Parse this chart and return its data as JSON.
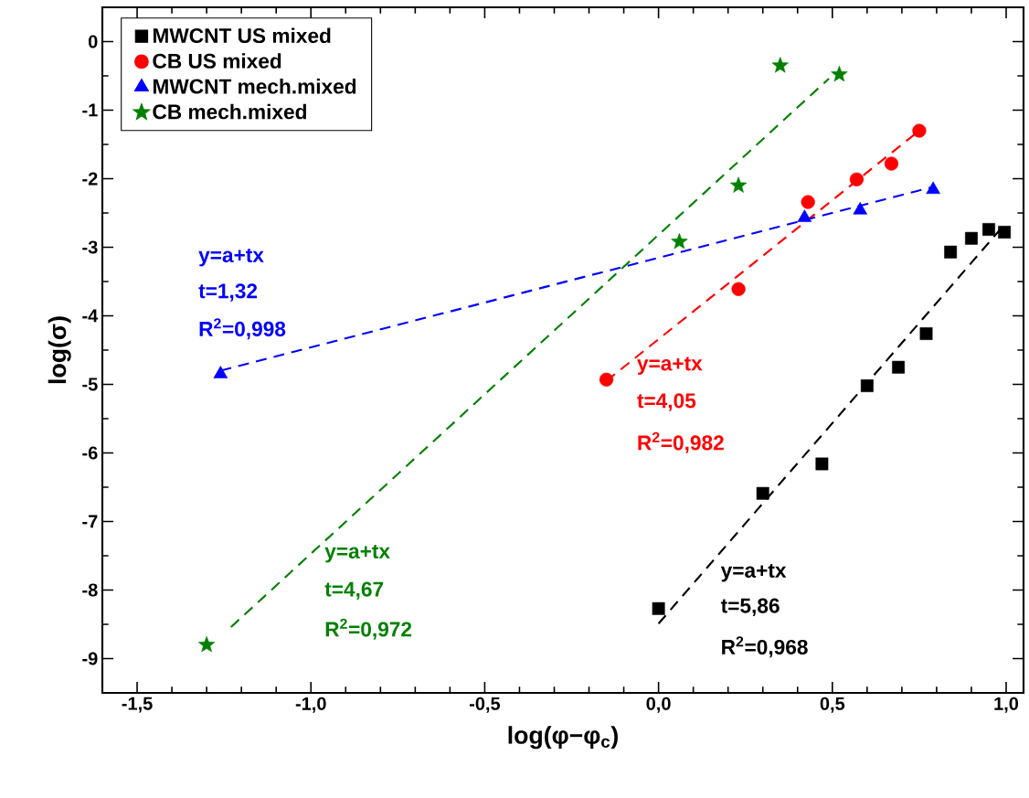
{
  "chart_data": {
    "type": "scatter",
    "xlabel": "log(φ−φ$_{c}$)",
    "ylabel": "log(σ)",
    "xlim": [
      -1.6,
      1.05
    ],
    "ylim": [
      -9.5,
      0.5
    ],
    "xticks": [
      {
        "value": -1.5,
        "label": "-1,5"
      },
      {
        "value": -1.0,
        "label": "-1,0"
      },
      {
        "value": -0.5,
        "label": "-0,5"
      },
      {
        "value": 0.0,
        "label": "0,0"
      },
      {
        "value": 0.5,
        "label": "0,5"
      },
      {
        "value": 1.0,
        "label": "1,0"
      }
    ],
    "yticks": [
      0,
      -1,
      -2,
      -3,
      -4,
      -5,
      -6,
      -7,
      -8,
      -9
    ],
    "legend": "top left",
    "series": [
      {
        "name": "MWCNT US mixed",
        "marker": "square",
        "color": "#000000",
        "x": [
          0.0,
          0.3,
          0.47,
          0.6,
          0.69,
          0.77,
          0.84,
          0.9,
          0.95,
          0.995
        ],
        "values": [
          -8.27,
          -6.59,
          -6.16,
          -5.02,
          -4.75,
          -4.26,
          -3.07,
          -2.87,
          -2.74,
          -2.78
        ]
      },
      {
        "name": "CB US mixed",
        "marker": "circle",
        "color": "#ff0000",
        "x": [
          -0.15,
          0.23,
          0.43,
          0.57,
          0.67,
          0.75
        ],
        "values": [
          -4.93,
          -3.61,
          -2.34,
          -2.01,
          -1.78,
          -1.3
        ]
      },
      {
        "name": "MWCNT mech.mixed",
        "marker": "triangle",
        "color": "#0000ff",
        "x": [
          -1.26,
          0.42,
          0.58,
          0.79
        ],
        "values": [
          -4.85,
          -2.57,
          -2.46,
          -2.16
        ]
      },
      {
        "name": "CB mech.mixed",
        "marker": "star",
        "color": "#008000",
        "x": [
          -1.3,
          0.06,
          0.23,
          0.35,
          0.52
        ],
        "values": [
          -8.8,
          -2.92,
          -2.1,
          -0.35,
          -0.48
        ]
      },
      {
        "type": "line",
        "line_style": "dashed",
        "color": "#000000",
        "x": [
          0.0,
          0.995
        ],
        "values": [
          -8.49,
          -2.67
        ]
      },
      {
        "type": "line",
        "line_style": "dashed",
        "color": "#ff0000",
        "x": [
          -0.15,
          0.75
        ],
        "values": [
          -4.95,
          -1.3
        ]
      },
      {
        "type": "line",
        "line_style": "dashed",
        "color": "#0000ff",
        "x": [
          -1.26,
          0.79
        ],
        "values": [
          -4.8,
          -2.12
        ]
      },
      {
        "type": "line",
        "line_style": "dashed",
        "color": "#008000",
        "x": [
          -1.23,
          0.49
        ],
        "values": [
          -8.54,
          -0.54
        ]
      }
    ],
    "annotations": [
      "y=a+tx",
      "t=5,86",
      "R$^{2}$=0,968",
      "y=a+tx",
      "t=4,05",
      "R$^{2}$=0,982",
      "y=a+tx",
      "t=1,32",
      "R$^{2}$=0,998",
      "y=a+tx",
      "t=4,67",
      "R$^{2}$=0,972"
    ]
  }
}
